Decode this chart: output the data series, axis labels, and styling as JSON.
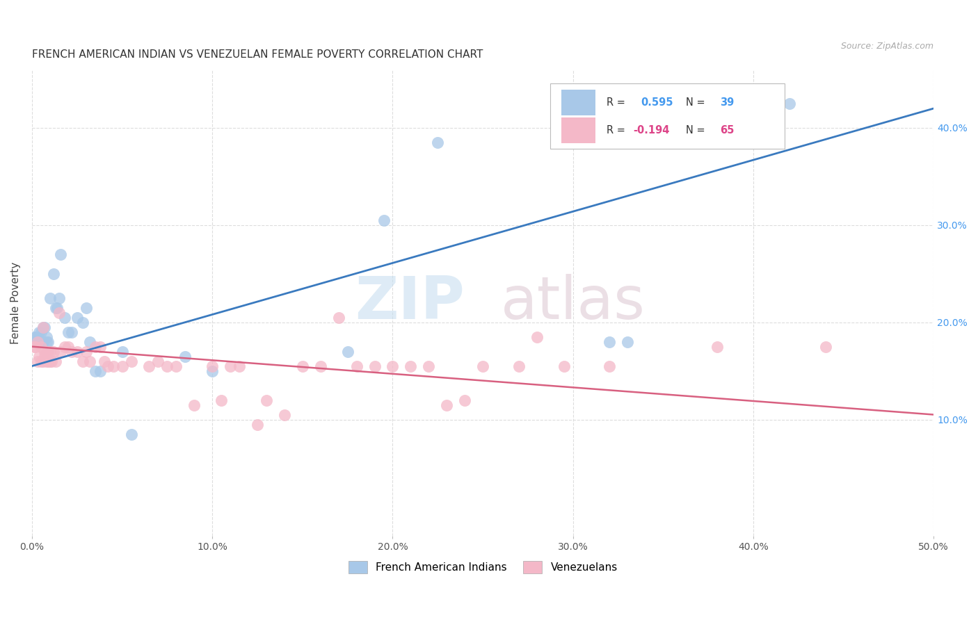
{
  "title": "FRENCH AMERICAN INDIAN VS VENEZUELAN FEMALE POVERTY CORRELATION CHART",
  "source": "Source: ZipAtlas.com",
  "ylabel": "Female Poverty",
  "right_yticks": [
    "40.0%",
    "30.0%",
    "20.0%",
    "10.0%"
  ],
  "right_ytick_vals": [
    0.4,
    0.3,
    0.2,
    0.1
  ],
  "blue_color": "#a8c8e8",
  "pink_color": "#f4b8c8",
  "blue_line_color": "#3a7abf",
  "pink_line_color": "#d86080",
  "r_text_blue": "#4499ee",
  "r_text_pink": "#dd4488",
  "watermark_zip": "ZIP",
  "watermark_atlas": "atlas",
  "xmin": 0.0,
  "xmax": 0.5,
  "ymin": -0.02,
  "ymax": 0.46,
  "blue_scatter": [
    [
      0.001,
      0.185
    ],
    [
      0.002,
      0.185
    ],
    [
      0.003,
      0.185
    ],
    [
      0.003,
      0.18
    ],
    [
      0.004,
      0.19
    ],
    [
      0.004,
      0.18
    ],
    [
      0.005,
      0.19
    ],
    [
      0.005,
      0.18
    ],
    [
      0.006,
      0.195
    ],
    [
      0.006,
      0.18
    ],
    [
      0.007,
      0.195
    ],
    [
      0.008,
      0.18
    ],
    [
      0.008,
      0.185
    ],
    [
      0.009,
      0.18
    ],
    [
      0.01,
      0.225
    ],
    [
      0.012,
      0.25
    ],
    [
      0.013,
      0.215
    ],
    [
      0.014,
      0.215
    ],
    [
      0.015,
      0.225
    ],
    [
      0.016,
      0.27
    ],
    [
      0.018,
      0.205
    ],
    [
      0.02,
      0.19
    ],
    [
      0.022,
      0.19
    ],
    [
      0.025,
      0.205
    ],
    [
      0.028,
      0.2
    ],
    [
      0.03,
      0.215
    ],
    [
      0.032,
      0.18
    ],
    [
      0.035,
      0.15
    ],
    [
      0.038,
      0.15
    ],
    [
      0.05,
      0.17
    ],
    [
      0.055,
      0.085
    ],
    [
      0.085,
      0.165
    ],
    [
      0.1,
      0.15
    ],
    [
      0.175,
      0.17
    ],
    [
      0.195,
      0.305
    ],
    [
      0.225,
      0.385
    ],
    [
      0.32,
      0.18
    ],
    [
      0.33,
      0.18
    ],
    [
      0.42,
      0.425
    ]
  ],
  "pink_scatter": [
    [
      0.001,
      0.175
    ],
    [
      0.002,
      0.175
    ],
    [
      0.003,
      0.16
    ],
    [
      0.003,
      0.18
    ],
    [
      0.004,
      0.165
    ],
    [
      0.005,
      0.16
    ],
    [
      0.005,
      0.175
    ],
    [
      0.006,
      0.195
    ],
    [
      0.006,
      0.16
    ],
    [
      0.007,
      0.17
    ],
    [
      0.007,
      0.165
    ],
    [
      0.008,
      0.16
    ],
    [
      0.008,
      0.17
    ],
    [
      0.009,
      0.16
    ],
    [
      0.009,
      0.17
    ],
    [
      0.01,
      0.17
    ],
    [
      0.01,
      0.16
    ],
    [
      0.011,
      0.16
    ],
    [
      0.012,
      0.17
    ],
    [
      0.013,
      0.16
    ],
    [
      0.015,
      0.21
    ],
    [
      0.016,
      0.17
    ],
    [
      0.018,
      0.175
    ],
    [
      0.02,
      0.175
    ],
    [
      0.022,
      0.17
    ],
    [
      0.025,
      0.17
    ],
    [
      0.028,
      0.16
    ],
    [
      0.03,
      0.17
    ],
    [
      0.032,
      0.16
    ],
    [
      0.035,
      0.175
    ],
    [
      0.038,
      0.175
    ],
    [
      0.04,
      0.16
    ],
    [
      0.042,
      0.155
    ],
    [
      0.045,
      0.155
    ],
    [
      0.05,
      0.155
    ],
    [
      0.055,
      0.16
    ],
    [
      0.065,
      0.155
    ],
    [
      0.07,
      0.16
    ],
    [
      0.075,
      0.155
    ],
    [
      0.08,
      0.155
    ],
    [
      0.09,
      0.115
    ],
    [
      0.1,
      0.155
    ],
    [
      0.105,
      0.12
    ],
    [
      0.11,
      0.155
    ],
    [
      0.115,
      0.155
    ],
    [
      0.125,
      0.095
    ],
    [
      0.13,
      0.12
    ],
    [
      0.14,
      0.105
    ],
    [
      0.15,
      0.155
    ],
    [
      0.16,
      0.155
    ],
    [
      0.17,
      0.205
    ],
    [
      0.18,
      0.155
    ],
    [
      0.19,
      0.155
    ],
    [
      0.2,
      0.155
    ],
    [
      0.21,
      0.155
    ],
    [
      0.22,
      0.155
    ],
    [
      0.23,
      0.115
    ],
    [
      0.24,
      0.12
    ],
    [
      0.25,
      0.155
    ],
    [
      0.27,
      0.155
    ],
    [
      0.28,
      0.185
    ],
    [
      0.295,
      0.155
    ],
    [
      0.32,
      0.155
    ],
    [
      0.38,
      0.175
    ],
    [
      0.44,
      0.175
    ]
  ],
  "blue_line_x": [
    0.0,
    0.5
  ],
  "blue_line_y": [
    0.155,
    0.42
  ],
  "pink_line_x": [
    0.0,
    0.5
  ],
  "pink_line_y": [
    0.175,
    0.105
  ]
}
